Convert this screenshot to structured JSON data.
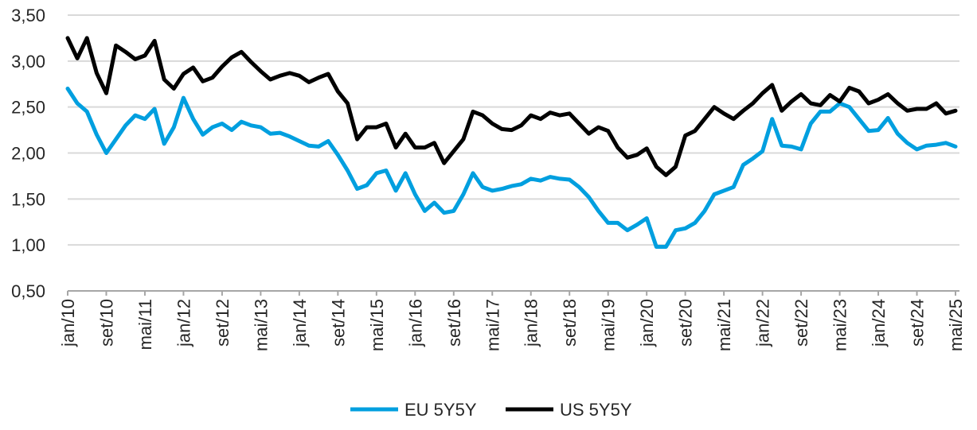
{
  "chart_data": {
    "type": "line",
    "title": "",
    "xlabel": "",
    "ylabel": "",
    "ylim": [
      0.5,
      3.5
    ],
    "y_ticks": [
      "0,50",
      "1,00",
      "1,50",
      "2,00",
      "2,50",
      "3,00",
      "3,50"
    ],
    "y_tick_values": [
      0.5,
      1.0,
      1.5,
      2.0,
      2.5,
      3.0,
      3.5
    ],
    "x_tick_labels": [
      "jan/10",
      "set/10",
      "mai/11",
      "jan/12",
      "set/12",
      "mai/13",
      "jan/14",
      "set/14",
      "mai/15",
      "jan/16",
      "set/16",
      "mai/17",
      "jan/18",
      "set/18",
      "mai/19",
      "jan/20",
      "set/20",
      "mai/21",
      "jan/22",
      "set/22",
      "mai/23",
      "jan/24",
      "set/24",
      "mai/25"
    ],
    "x_range": [
      "jan/10",
      "mai/25"
    ],
    "grid": "horizontal",
    "legend_position": "bottom",
    "x": [
      "jan/10",
      "mar/10",
      "mai/10",
      "jul/10",
      "set/10",
      "nov/10",
      "jan/11",
      "mar/11",
      "mai/11",
      "jul/11",
      "set/11",
      "nov/11",
      "jan/12",
      "mar/12",
      "mai/12",
      "jul/12",
      "set/12",
      "nov/12",
      "jan/13",
      "mar/13",
      "mai/13",
      "jul/13",
      "set/13",
      "nov/13",
      "jan/14",
      "mar/14",
      "mai/14",
      "jul/14",
      "set/14",
      "nov/14",
      "jan/15",
      "mar/15",
      "mai/15",
      "jul/15",
      "set/15",
      "nov/15",
      "jan/16",
      "mar/16",
      "mai/16",
      "jul/16",
      "set/16",
      "nov/16",
      "jan/17",
      "mar/17",
      "mai/17",
      "jul/17",
      "set/17",
      "nov/17",
      "jan/18",
      "mar/18",
      "mai/18",
      "jul/18",
      "set/18",
      "nov/18",
      "jan/19",
      "mar/19",
      "mai/19",
      "jul/19",
      "set/19",
      "nov/19",
      "jan/20",
      "mar/20",
      "mai/20",
      "jul/20",
      "set/20",
      "nov/20",
      "jan/21",
      "mar/21",
      "mai/21",
      "jul/21",
      "set/21",
      "nov/21",
      "jan/22",
      "mar/22",
      "mai/22",
      "jul/22",
      "set/22",
      "nov/22",
      "jan/23",
      "mar/23",
      "mai/23",
      "jul/23",
      "set/23",
      "nov/23",
      "jan/24",
      "mar/24",
      "mai/24",
      "jul/24",
      "set/24",
      "nov/24",
      "jan/25",
      "mar/25",
      "mai/25"
    ],
    "series": [
      {
        "name": "EU 5Y5Y",
        "color": "#009fdf",
        "values": [
          2.7,
          2.54,
          2.45,
          2.2,
          2.0,
          2.15,
          2.3,
          2.41,
          2.37,
          2.48,
          2.1,
          2.28,
          2.6,
          2.37,
          2.2,
          2.28,
          2.32,
          2.25,
          2.34,
          2.3,
          2.28,
          2.21,
          2.22,
          2.18,
          2.13,
          2.08,
          2.07,
          2.13,
          1.98,
          1.81,
          1.61,
          1.65,
          1.78,
          1.81,
          1.59,
          1.78,
          1.55,
          1.37,
          1.46,
          1.35,
          1.37,
          1.55,
          1.78,
          1.63,
          1.59,
          1.61,
          1.64,
          1.66,
          1.72,
          1.7,
          1.74,
          1.72,
          1.71,
          1.63,
          1.52,
          1.37,
          1.24,
          1.24,
          1.16,
          1.22,
          1.29,
          0.98,
          0.98,
          1.16,
          1.18,
          1.24,
          1.37,
          1.55,
          1.59,
          1.63,
          1.87,
          1.94,
          2.02,
          2.37,
          2.08,
          2.07,
          2.04,
          2.32,
          2.45,
          2.45,
          2.54,
          2.5,
          2.37,
          2.24,
          2.25,
          2.38,
          2.21,
          2.11,
          2.04,
          2.08,
          2.09,
          2.11,
          2.07
        ]
      },
      {
        "name": "US 5Y5Y",
        "color": "#000000",
        "values": [
          3.25,
          3.03,
          3.25,
          2.87,
          2.65,
          3.17,
          3.1,
          3.02,
          3.06,
          3.22,
          2.8,
          2.7,
          2.86,
          2.93,
          2.78,
          2.82,
          2.94,
          3.04,
          3.1,
          2.99,
          2.89,
          2.8,
          2.84,
          2.87,
          2.84,
          2.77,
          2.82,
          2.86,
          2.67,
          2.54,
          2.15,
          2.28,
          2.28,
          2.32,
          2.06,
          2.21,
          2.06,
          2.06,
          2.11,
          1.89,
          2.02,
          2.15,
          2.45,
          2.41,
          2.32,
          2.26,
          2.25,
          2.3,
          2.41,
          2.37,
          2.44,
          2.41,
          2.43,
          2.32,
          2.21,
          2.28,
          2.24,
          2.06,
          1.95,
          1.98,
          2.05,
          1.85,
          1.76,
          1.85,
          2.19,
          2.24,
          2.37,
          2.5,
          2.43,
          2.37,
          2.46,
          2.54,
          2.65,
          2.74,
          2.46,
          2.56,
          2.64,
          2.54,
          2.52,
          2.63,
          2.56,
          2.71,
          2.67,
          2.54,
          2.58,
          2.64,
          2.54,
          2.46,
          2.48,
          2.48,
          2.54,
          2.43,
          2.46
        ]
      }
    ]
  }
}
